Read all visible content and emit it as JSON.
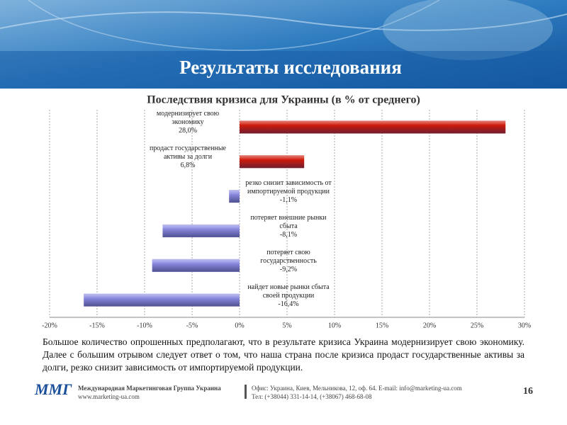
{
  "header": {
    "title": "Результаты исследования"
  },
  "chart_data": {
    "type": "hbar",
    "title": "Последствия кризиса для Украины (в % от среднего)",
    "categories": [
      "модернизирует свою экономику",
      "продаст государственные активы за долги",
      "резко снизит зависимость от импортируемой продукции",
      "потеряет внешние рынки сбыта",
      "потеряет свою государственность",
      "найдет новые рынки сбыта своей продукции"
    ],
    "values": [
      28.0,
      6.8,
      -1.1,
      -8.1,
      -9.2,
      -16.4
    ],
    "value_labels": [
      "28,0%",
      "6,8%",
      "-1,1%",
      "-8,1%",
      "-9,2%",
      "-16,4%"
    ],
    "colors": [
      "#d01a0a",
      "#d01a0a",
      "#8a8ae0",
      "#8a8ae0",
      "#8a8ae0",
      "#8a8ae0"
    ],
    "xlim": [
      -20,
      30
    ],
    "xticks": [
      {
        "value": -20,
        "label": "-20%"
      },
      {
        "value": -15,
        "label": "-15%"
      },
      {
        "value": -10,
        "label": "-10%"
      },
      {
        "value": -5,
        "label": "-5%"
      },
      {
        "value": 0,
        "label": "0%"
      },
      {
        "value": 5,
        "label": "5%"
      },
      {
        "value": 10,
        "label": "10%"
      },
      {
        "value": 15,
        "label": "15%"
      },
      {
        "value": 20,
        "label": "20%"
      },
      {
        "value": 25,
        "label": "25%"
      },
      {
        "value": 30,
        "label": "30%"
      }
    ],
    "grid": true
  },
  "body": {
    "text": "Большое количество опрошенных предполагают, что в результате кризиса Украина модернизирует свою экономику. Далее с большим отрывом следует ответ о том, что наша страна после кризиса продаст государственные активы за долги, резко снизит зависимость от импортируемой продукции."
  },
  "footer": {
    "logo": "ММГ",
    "company": "Международная Маркетинговая Группа Украина",
    "site": "www.marketing-ua.com",
    "office": "Офис: Украина, Киев, Мельникова, 12, оф. 64. E-mail: info@marketing-ua.com",
    "phone": "Тел: (+38044) 331-14-14, (+38067) 468-68-08",
    "page": "16"
  }
}
